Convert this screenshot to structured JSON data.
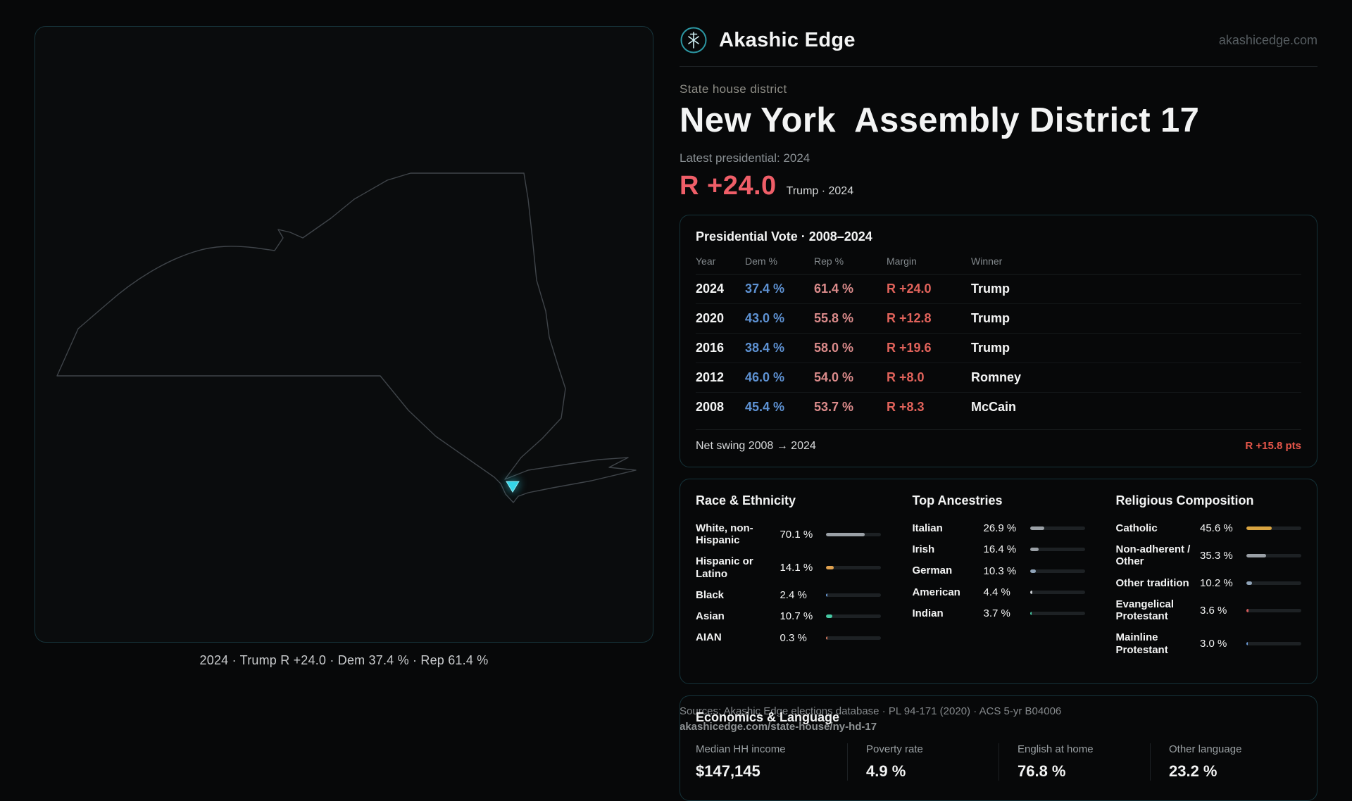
{
  "header": {
    "brand": "Akashic Edge",
    "domain": "akashicedge.com"
  },
  "hero": {
    "kicker": "State house district",
    "title": "New York  Assembly District 17",
    "latest_label": "Latest presidential: 2024",
    "margin_big": "R +24.0",
    "margin_sub": "Trump · 2024"
  },
  "map": {
    "caption": "2024 · Trump R +24.0 · Dem 37.4 % · Rep 61.4 %",
    "state": "New York",
    "district_marker_color": "#35d6ea",
    "outline_color": "#3f4449"
  },
  "presidential": {
    "title": "Presidential Vote · 2008–2024",
    "columns": [
      "Year",
      "Dem %",
      "Rep %",
      "Margin",
      "Winner"
    ],
    "rows": [
      {
        "year": "2024",
        "dem": "37.4 %",
        "rep": "61.4 %",
        "margin": "R +24.0",
        "winner": "Trump"
      },
      {
        "year": "2020",
        "dem": "43.0 %",
        "rep": "55.8 %",
        "margin": "R +12.8",
        "winner": "Trump"
      },
      {
        "year": "2016",
        "dem": "38.4 %",
        "rep": "58.0 %",
        "margin": "R +19.6",
        "winner": "Trump"
      },
      {
        "year": "2012",
        "dem": "46.0 %",
        "rep": "54.0 %",
        "margin": "R +8.0",
        "winner": "Romney"
      },
      {
        "year": "2008",
        "dem": "45.4 %",
        "rep": "53.7 %",
        "margin": "R +8.3",
        "winner": "McCain"
      }
    ],
    "net_swing_label": "Net swing 2008 → 2024",
    "net_swing_value": "R +15.8 pts"
  },
  "demographics": {
    "race": {
      "title": "Race & Ethnicity",
      "rows": [
        {
          "label": "White, non-Hispanic",
          "value": "70.1 %",
          "pct": 70.1,
          "color": "#9aa0a6"
        },
        {
          "label": "Hispanic or Latino",
          "value": "14.1 %",
          "pct": 14.1,
          "color": "#e0a14f"
        },
        {
          "label": "Black",
          "value": "2.4 %",
          "pct": 2.4,
          "color": "#6b9bd8"
        },
        {
          "label": "Asian",
          "value": "10.7 %",
          "pct": 10.7,
          "color": "#46c8a2"
        },
        {
          "label": "AIAN",
          "value": "0.3 %",
          "pct": 0.3,
          "color": "#d97a5f"
        }
      ]
    },
    "ancestries": {
      "title": "Top Ancestries",
      "rows": [
        {
          "label": "Italian",
          "value": "26.9 %",
          "pct": 26.9,
          "color": "#9aa0a6"
        },
        {
          "label": "Irish",
          "value": "16.4 %",
          "pct": 16.4,
          "color": "#9aa0a6"
        },
        {
          "label": "German",
          "value": "10.3 %",
          "pct": 10.3,
          "color": "#8fa3b8"
        },
        {
          "label": "American",
          "value": "4.4 %",
          "pct": 4.4,
          "color": "#c9cdd1"
        },
        {
          "label": "Indian",
          "value": "3.7 %",
          "pct": 3.7,
          "color": "#46c8a2"
        }
      ]
    },
    "religion": {
      "title": "Religious Composition",
      "rows": [
        {
          "label": "Catholic",
          "value": "45.6 %",
          "pct": 45.6,
          "color": "#d9a441"
        },
        {
          "label": "Non-adherent / Other",
          "value": "35.3 %",
          "pct": 35.3,
          "color": "#9aa0a6"
        },
        {
          "label": "Other tradition",
          "value": "10.2 %",
          "pct": 10.2,
          "color": "#8fa3b8"
        },
        {
          "label": "Evangelical Protestant",
          "value": "3.6 %",
          "pct": 3.6,
          "color": "#d95c5c"
        },
        {
          "label": "Mainline Protestant",
          "value": "3.0 %",
          "pct": 3.0,
          "color": "#6b9bd8"
        }
      ]
    }
  },
  "economics": {
    "title": "Economics & Language",
    "stats": [
      {
        "label": "Median HH income",
        "value": "$147,145"
      },
      {
        "label": "Poverty rate",
        "value": "4.9 %"
      },
      {
        "label": "English at home",
        "value": "76.8 %"
      },
      {
        "label": "Other language",
        "value": "23.2 %"
      }
    ]
  },
  "footer": {
    "sources": "Sources: Akashic Edge elections database · PL 94-171 (2020) · ACS 5-yr B04006",
    "link": "akashicedge.com/state-house/ny-hd-17"
  }
}
